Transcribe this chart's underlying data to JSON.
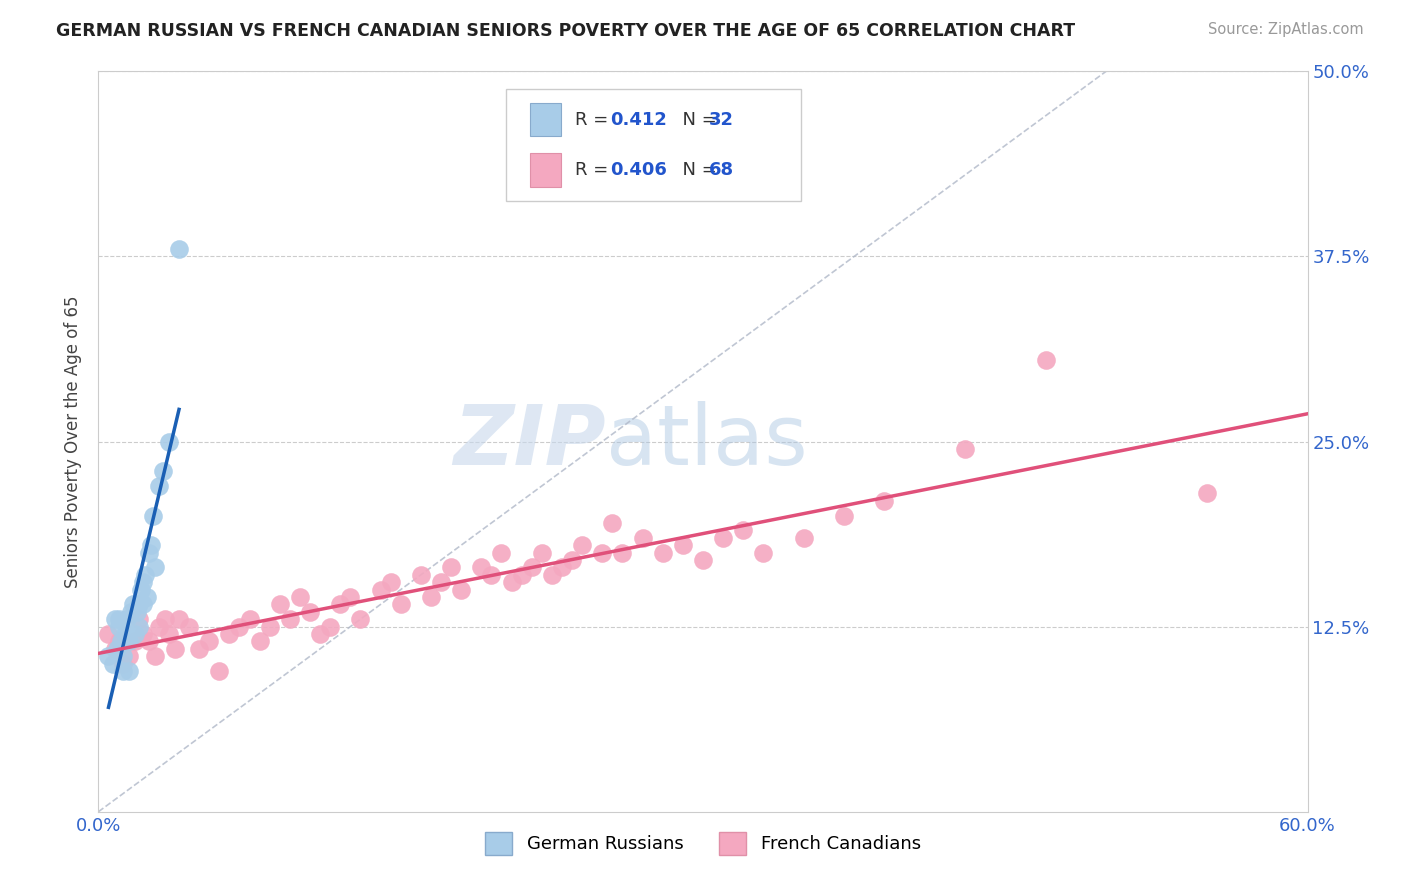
{
  "title": "GERMAN RUSSIAN VS FRENCH CANADIAN SENIORS POVERTY OVER THE AGE OF 65 CORRELATION CHART",
  "source": "Source: ZipAtlas.com",
  "ylabel": "Seniors Poverty Over the Age of 65",
  "xlim": [
    0.0,
    0.6
  ],
  "ylim": [
    0.0,
    0.5
  ],
  "xtick_labels": [
    "0.0%",
    "60.0%"
  ],
  "ytick_labels": [
    "12.5%",
    "25.0%",
    "37.5%",
    "50.0%"
  ],
  "ytick_values": [
    0.125,
    0.25,
    0.375,
    0.5
  ],
  "color_blue": "#a8cce8",
  "color_pink": "#f4a8c0",
  "line_blue": "#1a5fb4",
  "line_pink": "#e0507a",
  "background": "#ffffff",
  "german_russian_x": [
    0.005,
    0.007,
    0.008,
    0.009,
    0.01,
    0.01,
    0.011,
    0.012,
    0.012,
    0.013,
    0.014,
    0.015,
    0.015,
    0.016,
    0.017,
    0.018,
    0.019,
    0.02,
    0.02,
    0.021,
    0.022,
    0.022,
    0.023,
    0.024,
    0.025,
    0.026,
    0.027,
    0.028,
    0.03,
    0.032,
    0.035,
    0.04
  ],
  "german_russian_y": [
    0.105,
    0.1,
    0.13,
    0.11,
    0.13,
    0.125,
    0.115,
    0.095,
    0.105,
    0.12,
    0.13,
    0.095,
    0.115,
    0.135,
    0.14,
    0.12,
    0.135,
    0.14,
    0.125,
    0.15,
    0.155,
    0.14,
    0.16,
    0.145,
    0.175,
    0.18,
    0.2,
    0.165,
    0.22,
    0.23,
    0.25,
    0.38
  ],
  "french_canadian_x": [
    0.005,
    0.008,
    0.01,
    0.012,
    0.015,
    0.018,
    0.02,
    0.022,
    0.025,
    0.028,
    0.03,
    0.033,
    0.035,
    0.038,
    0.04,
    0.045,
    0.05,
    0.055,
    0.06,
    0.065,
    0.07,
    0.075,
    0.08,
    0.085,
    0.09,
    0.095,
    0.1,
    0.105,
    0.11,
    0.115,
    0.12,
    0.125,
    0.13,
    0.14,
    0.145,
    0.15,
    0.16,
    0.165,
    0.17,
    0.175,
    0.18,
    0.19,
    0.195,
    0.2,
    0.205,
    0.21,
    0.215,
    0.22,
    0.225,
    0.23,
    0.235,
    0.24,
    0.25,
    0.255,
    0.26,
    0.27,
    0.28,
    0.29,
    0.3,
    0.31,
    0.32,
    0.33,
    0.35,
    0.37,
    0.39,
    0.43,
    0.47,
    0.55
  ],
  "french_canadian_y": [
    0.12,
    0.11,
    0.115,
    0.1,
    0.105,
    0.115,
    0.13,
    0.12,
    0.115,
    0.105,
    0.125,
    0.13,
    0.12,
    0.11,
    0.13,
    0.125,
    0.11,
    0.115,
    0.095,
    0.12,
    0.125,
    0.13,
    0.115,
    0.125,
    0.14,
    0.13,
    0.145,
    0.135,
    0.12,
    0.125,
    0.14,
    0.145,
    0.13,
    0.15,
    0.155,
    0.14,
    0.16,
    0.145,
    0.155,
    0.165,
    0.15,
    0.165,
    0.16,
    0.175,
    0.155,
    0.16,
    0.165,
    0.175,
    0.16,
    0.165,
    0.17,
    0.18,
    0.175,
    0.195,
    0.175,
    0.185,
    0.175,
    0.18,
    0.17,
    0.185,
    0.19,
    0.175,
    0.185,
    0.2,
    0.21,
    0.245,
    0.305,
    0.215
  ]
}
